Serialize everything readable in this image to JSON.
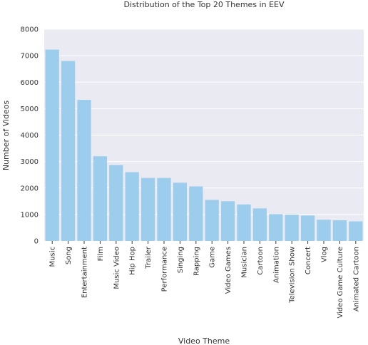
{
  "chart_data": {
    "type": "bar",
    "title": "Distribution of the Top 20 Themes in EEV",
    "xlabel": "Video Theme",
    "ylabel": "Number of Videos",
    "ylim": [
      0,
      8000
    ],
    "yticks": [
      0,
      1000,
      2000,
      3000,
      4000,
      5000,
      6000,
      7000,
      8000
    ],
    "grid": true,
    "categories": [
      "Music",
      "Song",
      "Entertainment",
      "Film",
      "Music Video",
      "Hip Hop",
      "Trailer",
      "Performance",
      "Singing",
      "Rapping",
      "Game",
      "Video Games",
      "Musician",
      "Cartoon",
      "Animation",
      "Television Show",
      "Concert",
      "Vlog",
      "Video Game Culture",
      "Animated Cartoon"
    ],
    "values": [
      7230,
      6800,
      5330,
      3200,
      2870,
      2600,
      2380,
      2380,
      2200,
      2060,
      1550,
      1500,
      1380,
      1230,
      1010,
      990,
      960,
      800,
      780,
      740
    ]
  },
  "colors": {
    "bar": "#9dcdec",
    "plot_background": "#eaeaf2",
    "grid": "#ffffff"
  }
}
